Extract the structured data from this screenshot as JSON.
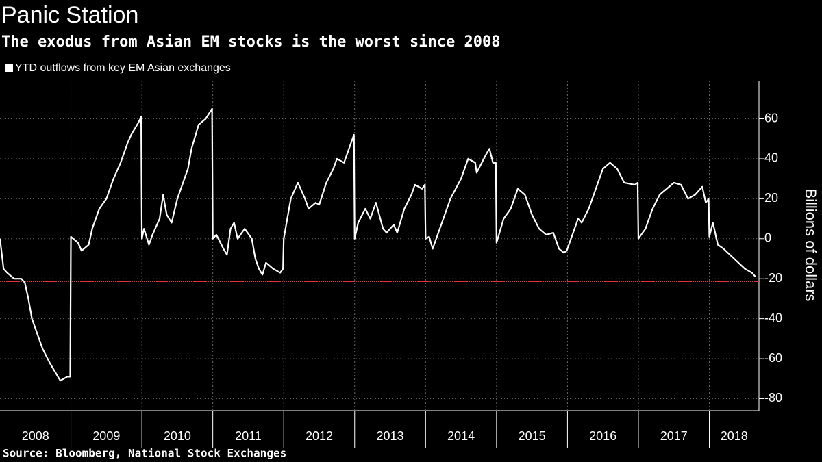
{
  "chart_data": {
    "type": "line",
    "title": "Panic Station",
    "subtitle": "The exodus from Asian EM stocks is the worst since 2008",
    "y_label": "Billions of dollars",
    "source": "Source: Bloomberg, National Stock Exchanges",
    "x": [
      2008,
      2008.05,
      2008.1,
      2008.2,
      2008.3,
      2008.35,
      2008.4,
      2008.45,
      2008.5,
      2008.6,
      2008.7,
      2008.8,
      2008.85,
      2008.95,
      2008.99,
      2009,
      2009.1,
      2009.15,
      2009.25,
      2009.3,
      2009.4,
      2009.5,
      2009.6,
      2009.7,
      2009.8,
      2009.85,
      2009.95,
      2009.99,
      2010,
      2010.03,
      2010.1,
      2010.15,
      2010.25,
      2010.3,
      2010.35,
      2010.42,
      2010.5,
      2010.55,
      2010.65,
      2010.7,
      2010.8,
      2010.9,
      2010.99,
      2011,
      2011.05,
      2011.15,
      2011.2,
      2011.25,
      2011.3,
      2011.35,
      2011.45,
      2011.55,
      2011.6,
      2011.65,
      2011.7,
      2011.75,
      2011.85,
      2011.95,
      2011.99,
      2012,
      2012.05,
      2012.1,
      2012.2,
      2012.3,
      2012.35,
      2012.45,
      2012.5,
      2012.6,
      2012.7,
      2012.75,
      2012.85,
      2012.95,
      2012.99,
      2013,
      2013.05,
      2013.15,
      2013.22,
      2013.3,
      2013.4,
      2013.45,
      2013.55,
      2013.6,
      2013.7,
      2013.8,
      2013.85,
      2013.95,
      2013.99,
      2014,
      2014.05,
      2014.1,
      2014.15,
      2014.25,
      2014.35,
      2014.5,
      2014.6,
      2014.7,
      2014.72,
      2014.85,
      2014.9,
      2014.95,
      2014.99,
      2015,
      2015.1,
      2015.2,
      2015.3,
      2015.4,
      2015.5,
      2015.6,
      2015.7,
      2015.8,
      2015.88,
      2015.95,
      2015.99,
      2016.05,
      2016.15,
      2016.2,
      2016.3,
      2016.4,
      2016.5,
      2016.6,
      2016.7,
      2016.8,
      2016.95,
      2016.99,
      2017,
      2017.1,
      2017.2,
      2017.3,
      2017.5,
      2017.6,
      2017.7,
      2017.8,
      2017.9,
      2017.95,
      2017.99,
      2018,
      2018.05,
      2018.12,
      2018.2,
      2018.35,
      2018.5,
      2018.6,
      2018.65
    ],
    "series": [
      {
        "name": "YTD outflows from key EM Asian exchanges",
        "color": "#ffffff",
        "values": [
          0,
          -15,
          -17,
          -20,
          -20,
          -22,
          -30,
          -40,
          -45,
          -55,
          -62,
          -68,
          -71,
          -69,
          -69,
          1,
          -2,
          -6,
          -3,
          5,
          15,
          20,
          30,
          38,
          48,
          52,
          58,
          61,
          0,
          5,
          -3,
          2,
          10,
          22,
          12,
          8,
          20,
          25,
          35,
          45,
          57,
          60,
          65,
          0,
          2,
          -5,
          -8,
          5,
          8,
          0,
          5,
          0,
          -10,
          -15,
          -18,
          -12,
          -15,
          -17,
          -15,
          0,
          10,
          20,
          28,
          20,
          15,
          18,
          17,
          28,
          35,
          40,
          38,
          48,
          52,
          0,
          8,
          15,
          10,
          18,
          5,
          3,
          7,
          3,
          15,
          22,
          27,
          25,
          27,
          0,
          1,
          -5,
          0,
          10,
          20,
          30,
          40,
          38,
          33,
          42,
          45,
          38,
          38,
          -2,
          10,
          15,
          25,
          22,
          12,
          5,
          2,
          3,
          -5,
          -7,
          -6,
          0,
          10,
          8,
          15,
          25,
          35,
          38,
          35,
          28,
          27,
          28,
          0,
          5,
          15,
          22,
          28,
          27,
          20,
          22,
          26,
          18,
          20,
          1,
          8,
          -3,
          -5,
          -10,
          -15,
          -17,
          -19
        ]
      }
    ],
    "reference_line": {
      "value": -21.3,
      "color": "#e0303a"
    },
    "xlim": [
      2008,
      2018.7
    ],
    "xticks": [
      2008,
      2009,
      2010,
      2011,
      2012,
      2013,
      2014,
      2015,
      2016,
      2017,
      2018
    ],
    "ylim": [
      -86,
      79
    ],
    "yticks": [
      -80,
      -60,
      -40,
      -20,
      0,
      20,
      40,
      60
    ],
    "grid": true
  }
}
